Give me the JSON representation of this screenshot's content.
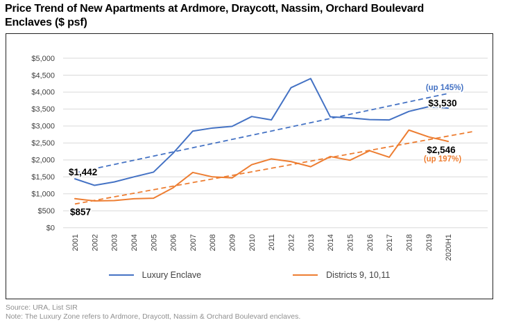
{
  "title": {
    "line1": "Price Trend of New Apartments at Ardmore, Draycott, Nassim, Orchard Boulevard",
    "line2": "Enclaves ($ psf)"
  },
  "footer": {
    "source": "Source: URA, List SIR",
    "note": "Note: The Luxury Zone refers to Ardmore, Draycott, Nassim & Orchard Boulevard enclaves."
  },
  "colors": {
    "luxury": "#4472c4",
    "districts": "#ed7d31",
    "grid": "#d9d9d9",
    "axis_text": "#404040",
    "data_label": "#000000"
  },
  "chart_data": {
    "type": "line",
    "title": "Price Trend of New Apartments at Ardmore, Draycott, Nassim, Orchard Boulevard Enclaves ($ psf)",
    "categories": [
      "2001",
      "2002",
      "2003",
      "2004",
      "2005",
      "2006",
      "2007",
      "2008",
      "2009",
      "2010",
      "2011",
      "2012",
      "2013",
      "2014",
      "2015",
      "2016",
      "2017",
      "2018",
      "2019",
      "2020H1"
    ],
    "series": [
      {
        "name": "Luxury Enclave",
        "color_key": "luxury",
        "values": [
          1442,
          1250,
          1350,
          1500,
          1640,
          2200,
          2850,
          2940,
          2990,
          3280,
          3180,
          4130,
          4400,
          3270,
          3240,
          3190,
          3180,
          3430,
          3570,
          3530
        ],
        "trend": {
          "start_value": 1620,
          "end_value": 3960,
          "end_index": 19
        }
      },
      {
        "name": "Districts 9, 10,11",
        "color_key": "districts",
        "values": [
          857,
          790,
          800,
          855,
          870,
          1180,
          1630,
          1500,
          1470,
          1860,
          2030,
          1950,
          1800,
          2100,
          1990,
          2270,
          2080,
          2880,
          2680,
          2546
        ],
        "trend": {
          "start_value": 700,
          "end_value": 2840,
          "end_index": 20.3
        }
      }
    ],
    "ylim": [
      0,
      5000
    ],
    "ytick_step": 500,
    "yticks": [
      "$0",
      "$500",
      "$1,000",
      "$1,500",
      "$2,000",
      "$2,500",
      "$3,000",
      "$3,500",
      "$4,000",
      "$4,500",
      "$5,000"
    ],
    "grid": true,
    "legend_position": "bottom",
    "annotations": [
      {
        "id": "luxury-start",
        "text": "$1,442"
      },
      {
        "id": "luxury-end",
        "text": "$3,530"
      },
      {
        "id": "luxury-trend",
        "text": "(up 145%)"
      },
      {
        "id": "districts-start",
        "text": "$857"
      },
      {
        "id": "districts-end",
        "text": "$2,546"
      },
      {
        "id": "districts-trend",
        "text": "(up 197%)"
      }
    ]
  }
}
